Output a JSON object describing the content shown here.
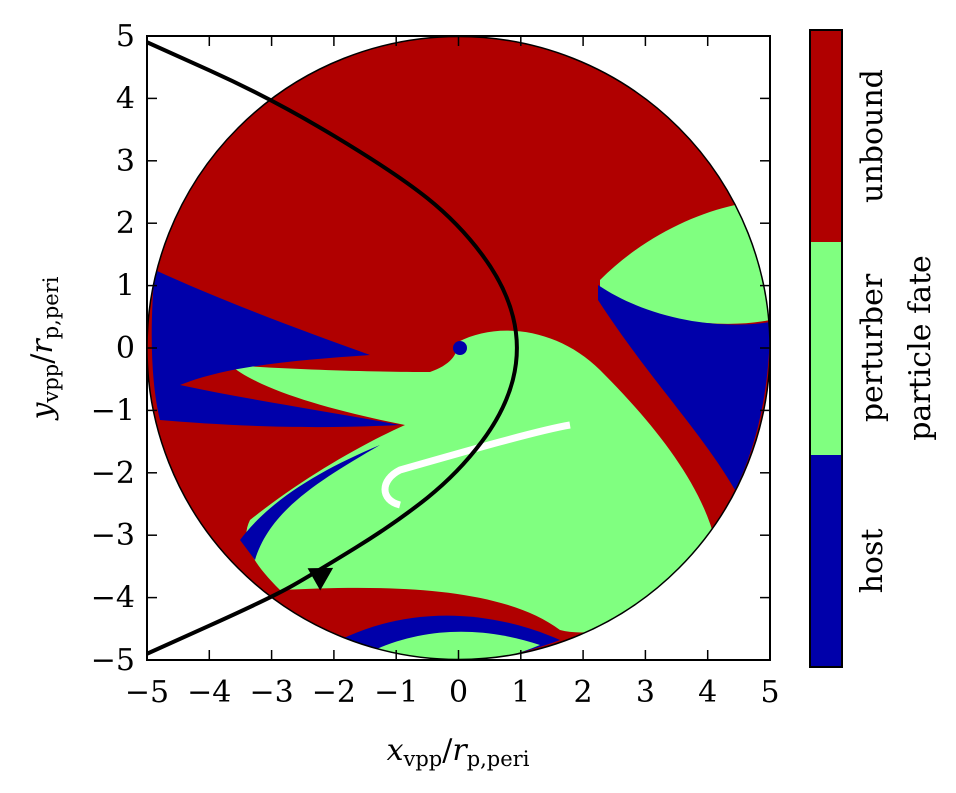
{
  "chart_data": {
    "type": "heatmap",
    "title": "",
    "xlabel": {
      "main": "x",
      "sub": "vpp",
      "sep": "/",
      "main2": "r",
      "sub2": "p,peri"
    },
    "ylabel": {
      "main": "y",
      "sub": "vpp",
      "sep": "/",
      "main2": "r",
      "sub2": "p,peri"
    },
    "xlim": [
      -5,
      5
    ],
    "ylim": [
      -5,
      5
    ],
    "xticks": [
      -5,
      -4,
      -3,
      -2,
      -1,
      0,
      1,
      2,
      3,
      4,
      5
    ],
    "yticks": [
      -5,
      -4,
      -3,
      -2,
      -1,
      0,
      1,
      2,
      3,
      4,
      5
    ],
    "xtick_labels": [
      "−5",
      "−4",
      "−3",
      "−2",
      "−1",
      "0",
      "1",
      "2",
      "3",
      "4",
      "5"
    ],
    "ytick_labels": [
      "−5",
      "−4",
      "−3",
      "−2",
      "−1",
      "0",
      "1",
      "2",
      "3",
      "4",
      "5"
    ],
    "domain_radius": 5,
    "categories": [
      "host",
      "perturber",
      "unbound"
    ],
    "colors": {
      "host": "#0000aa",
      "perturber": "#80ff80",
      "unbound": "#b00000",
      "none": "#ffffff",
      "orbit": "#000000"
    },
    "colorbar": {
      "label": "particle fate",
      "entries": [
        "host",
        "perturber",
        "unbound"
      ]
    },
    "perturber_orbit": {
      "type": "parabola",
      "pericenter": [
        1,
        0
      ],
      "direction": "toward negative y",
      "points": [
        [
          -5,
          4.9
        ],
        [
          -3,
          4.0
        ],
        [
          -1,
          2.8
        ],
        [
          0,
          2.0
        ],
        [
          0.75,
          1.0
        ],
        [
          1,
          0
        ],
        [
          0.75,
          -1.0
        ],
        [
          0,
          -2.0
        ],
        [
          -1,
          -2.8
        ],
        [
          -2.3,
          -3.6
        ],
        [
          -3,
          -4.0
        ],
        [
          -5,
          -4.9
        ]
      ]
    },
    "host_position": [
      0,
      0
    ],
    "grid": false,
    "legend": "colorbar right"
  }
}
